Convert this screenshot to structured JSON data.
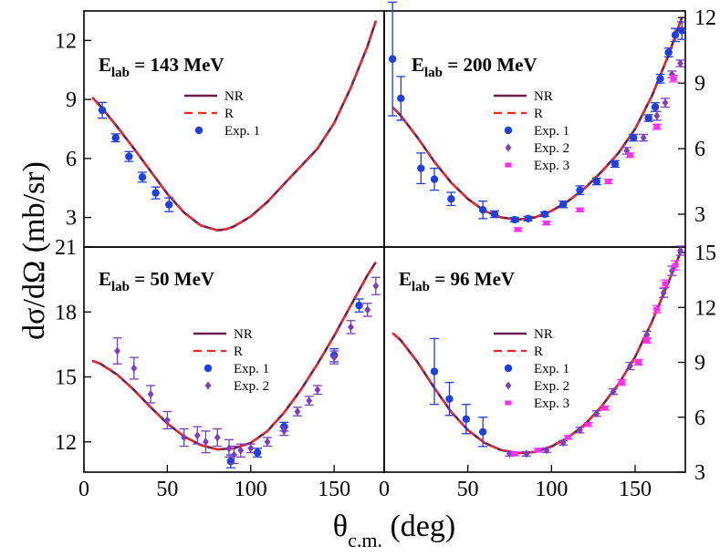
{
  "figure": {
    "ylabel": "dσ/dΩ (mb/sr)",
    "xlabel_theta": "θ",
    "xlabel_sub": "c.m.",
    "xlabel_unit": " (deg)"
  },
  "colors": {
    "NR": "#6b1f4a",
    "R": "#ff2020",
    "Exp. 1": "#1f3fe0",
    "Exp. 2": "#7b3fc0",
    "Exp. 3": "#ff30f0"
  },
  "chart_data": [
    {
      "id": "p143",
      "type": "line+errorbar",
      "title_E": "E",
      "title_sub": "lab",
      "title_rest": " = 143 MeV",
      "xlim": [
        0,
        180
      ],
      "ylim": [
        1.5,
        13.5
      ],
      "yticks": [
        3,
        6,
        9,
        12
      ],
      "ytick_labels": [
        "3",
        "6",
        "9",
        "12"
      ],
      "xticks": [],
      "xtick_labels": [],
      "yaxis_side": "left",
      "legend": [
        "NR",
        "R",
        "Exp. 1"
      ],
      "curve": [
        [
          5,
          9.1
        ],
        [
          10,
          8.65
        ],
        [
          20,
          7.6
        ],
        [
          30,
          6.5
        ],
        [
          40,
          5.35
        ],
        [
          50,
          4.2
        ],
        [
          60,
          3.25
        ],
        [
          70,
          2.6
        ],
        [
          80,
          2.35
        ],
        [
          85,
          2.4
        ],
        [
          90,
          2.55
        ],
        [
          100,
          3.05
        ],
        [
          110,
          3.8
        ],
        [
          120,
          4.7
        ],
        [
          130,
          5.6
        ],
        [
          140,
          6.5
        ],
        [
          150,
          7.8
        ],
        [
          160,
          9.6
        ],
        [
          170,
          11.7
        ],
        [
          175,
          13.0
        ]
      ],
      "series": [
        {
          "name": "Exp. 1",
          "marker": "circle",
          "points": [
            [
              11,
              8.45,
              0.4
            ],
            [
              19,
              7.05,
              0.2
            ],
            [
              27,
              6.1,
              0.25
            ],
            [
              35,
              5.05,
              0.25
            ],
            [
              43,
              4.25,
              0.3
            ],
            [
              51,
              3.65,
              0.35
            ]
          ]
        }
      ]
    },
    {
      "id": "p200",
      "type": "line+errorbar",
      "title_E": "E",
      "title_sub": "lab",
      "title_rest": " = 200 MeV",
      "xlim": [
        0,
        180
      ],
      "ylim": [
        1.5,
        12.3
      ],
      "yticks": [
        3,
        6,
        9,
        12
      ],
      "ytick_labels": [
        "3",
        "6",
        "9",
        "12"
      ],
      "xticks": [],
      "xtick_labels": [],
      "yaxis_side": "right",
      "legend": [
        "NR",
        "R",
        "Exp. 1",
        "Exp. 2",
        "Exp. 3"
      ],
      "curve": [
        [
          5,
          7.9
        ],
        [
          10,
          7.5
        ],
        [
          20,
          6.5
        ],
        [
          30,
          5.4
        ],
        [
          40,
          4.45
        ],
        [
          50,
          3.7
        ],
        [
          60,
          3.15
        ],
        [
          70,
          2.85
        ],
        [
          80,
          2.75
        ],
        [
          90,
          2.85
        ],
        [
          100,
          3.15
        ],
        [
          110,
          3.6
        ],
        [
          120,
          4.2
        ],
        [
          130,
          4.95
        ],
        [
          140,
          5.8
        ],
        [
          150,
          6.9
        ],
        [
          160,
          8.4
        ],
        [
          170,
          10.3
        ],
        [
          178,
          12.0
        ]
      ],
      "series": [
        {
          "name": "Exp. 1",
          "marker": "circle",
          "points": [
            [
              5,
              10.1,
              2.6
            ],
            [
              10,
              8.3,
              1.0
            ],
            [
              22,
              5.1,
              0.7
            ],
            [
              30,
              4.6,
              0.5
            ],
            [
              40,
              3.7,
              0.3
            ],
            [
              59,
              3.2,
              0.4
            ],
            [
              66,
              3.0,
              0.15
            ],
            [
              78,
              2.75,
              0.1
            ],
            [
              86,
              2.8,
              0.1
            ],
            [
              96,
              3.0,
              0.1
            ],
            [
              107,
              3.45,
              0.15
            ],
            [
              117,
              4.1,
              0.2
            ],
            [
              127,
              4.5,
              0.15
            ],
            [
              138,
              5.3,
              0.15
            ],
            [
              149,
              6.5,
              0.15
            ],
            [
              158,
              7.4,
              0.15
            ],
            [
              162,
              7.9,
              0.2
            ],
            [
              165,
              9.2,
              0.2
            ],
            [
              170,
              10.4,
              0.2
            ],
            [
              174,
              11.2,
              0.3
            ],
            [
              178,
              11.4,
              0.4
            ]
          ]
        },
        {
          "name": "Exp. 2",
          "marker": "diamond",
          "points": [
            [
              145,
              5.9,
              0.15
            ],
            [
              155,
              6.5,
              0.15
            ],
            [
              163,
              7.5,
              0.2
            ],
            [
              168,
              8.1,
              0.2
            ],
            [
              172,
              9.4,
              0.15
            ],
            [
              177,
              9.9,
              0.15
            ]
          ]
        },
        {
          "name": "Exp. 3",
          "marker": "square",
          "points": [
            [
              80,
              2.3,
              0.08
            ],
            [
              97,
              2.6,
              0.08
            ],
            [
              117,
              3.2,
              0.08
            ],
            [
              134,
              4.5,
              0.1
            ],
            [
              147,
              5.7,
              0.1
            ],
            [
              163,
              7.0,
              0.12
            ],
            [
              173,
              9.2,
              0.15
            ]
          ]
        }
      ]
    },
    {
      "id": "p50",
      "type": "line+errorbar",
      "title_E": "E",
      "title_sub": "lab",
      "title_rest": " = 50 MeV",
      "xlim": [
        0,
        180
      ],
      "ylim": [
        10.6,
        21.0
      ],
      "yticks": [
        12,
        15,
        18,
        21
      ],
      "ytick_labels": [
        "12",
        "15",
        "18",
        "21"
      ],
      "xticks": [
        0,
        50,
        100,
        150
      ],
      "xtick_labels": [
        "0",
        "50",
        "100",
        "150"
      ],
      "yaxis_side": "left",
      "legend": [
        "NR",
        "R",
        "Exp. 1",
        "Exp. 2"
      ],
      "curve": [
        [
          5,
          15.75
        ],
        [
          10,
          15.6
        ],
        [
          20,
          15.1
        ],
        [
          30,
          14.4
        ],
        [
          40,
          13.6
        ],
        [
          50,
          12.85
        ],
        [
          60,
          12.25
        ],
        [
          70,
          11.85
        ],
        [
          80,
          11.65
        ],
        [
          90,
          11.7
        ],
        [
          100,
          11.95
        ],
        [
          110,
          12.5
        ],
        [
          120,
          13.35
        ],
        [
          130,
          14.4
        ],
        [
          140,
          15.6
        ],
        [
          150,
          16.9
        ],
        [
          160,
          18.3
        ],
        [
          170,
          19.7
        ],
        [
          175,
          20.3
        ]
      ],
      "series": [
        {
          "name": "Exp. 1",
          "marker": "circle",
          "points": [
            [
              88,
              11.1,
              0.3
            ],
            [
              104,
              11.5,
              0.2
            ],
            [
              120,
              12.7,
              0.2
            ],
            [
              150,
              16.0,
              0.3
            ],
            [
              165,
              18.3,
              0.3
            ]
          ]
        },
        {
          "name": "Exp. 2",
          "marker": "diamond",
          "points": [
            [
              20,
              16.2,
              0.6
            ],
            [
              30,
              15.4,
              0.5
            ],
            [
              40,
              14.2,
              0.4
            ],
            [
              50,
              13.0,
              0.4
            ],
            [
              60,
              12.2,
              0.4
            ],
            [
              68,
              12.3,
              0.4
            ],
            [
              73,
              12.0,
              0.5
            ],
            [
              80,
              12.2,
              0.4
            ],
            [
              87,
              11.7,
              0.4
            ],
            [
              90,
              11.4,
              0.4
            ],
            [
              94,
              11.6,
              0.3
            ],
            [
              100,
              11.7,
              0.2
            ],
            [
              110,
              12.0,
              0.2
            ],
            [
              120,
              12.5,
              0.2
            ],
            [
              128,
              13.4,
              0.2
            ],
            [
              135,
              13.9,
              0.2
            ],
            [
              140,
              14.4,
              0.2
            ],
            [
              150,
              15.9,
              0.3
            ],
            [
              160,
              17.3,
              0.3
            ],
            [
              170,
              18.1,
              0.3
            ],
            [
              175,
              19.2,
              0.4
            ]
          ]
        }
      ]
    },
    {
      "id": "p96",
      "type": "line+errorbar",
      "title_E": "E",
      "title_sub": "lab",
      "title_rest": " = 96 MeV",
      "xlim": [
        0,
        180
      ],
      "ylim": [
        3,
        15.3
      ],
      "yticks": [
        3,
        6,
        9,
        12,
        15
      ],
      "ytick_labels": [
        "3",
        "6",
        "9",
        "12",
        "15"
      ],
      "xticks": [
        0,
        50,
        100,
        150
      ],
      "xtick_labels": [
        "0",
        "50",
        "100",
        "150"
      ],
      "yaxis_side": "right",
      "legend": [
        "NR",
        "R",
        "Exp. 1",
        "Exp. 2",
        "Exp. 3"
      ],
      "curve": [
        [
          5,
          10.6
        ],
        [
          10,
          10.2
        ],
        [
          20,
          9.0
        ],
        [
          30,
          7.6
        ],
        [
          40,
          6.3
        ],
        [
          50,
          5.3
        ],
        [
          60,
          4.6
        ],
        [
          70,
          4.2
        ],
        [
          80,
          4.05
        ],
        [
          90,
          4.1
        ],
        [
          100,
          4.4
        ],
        [
          110,
          4.9
        ],
        [
          120,
          5.6
        ],
        [
          130,
          6.6
        ],
        [
          140,
          7.8
        ],
        [
          150,
          9.3
        ],
        [
          160,
          11.2
        ],
        [
          170,
          13.4
        ],
        [
          178,
          15.2
        ]
      ],
      "series": [
        {
          "name": "Exp. 1",
          "marker": "circle",
          "points": [
            [
              30,
              8.5,
              1.8
            ],
            [
              39,
              7.0,
              0.9
            ],
            [
              49,
              5.9,
              0.8
            ],
            [
              59,
              5.2,
              0.8
            ]
          ]
        },
        {
          "name": "Exp. 2",
          "marker": "diamond",
          "points": [
            [
              75,
              4.0,
              0.12
            ],
            [
              85,
              4.0,
              0.12
            ],
            [
              97,
              4.2,
              0.12
            ],
            [
              107,
              4.6,
              0.12
            ],
            [
              117,
              5.3,
              0.15
            ],
            [
              127,
              6.2,
              0.15
            ],
            [
              137,
              7.4,
              0.15
            ],
            [
              147,
              8.8,
              0.2
            ],
            [
              157,
              10.5,
              0.2
            ],
            [
              167,
              12.8,
              0.25
            ],
            [
              172,
              14.0,
              0.25
            ],
            [
              177,
              15.1,
              0.25
            ]
          ]
        },
        {
          "name": "Exp. 3",
          "marker": "square",
          "points": [
            [
              78,
              4.0,
              0.1
            ],
            [
              92,
              4.2,
              0.1
            ],
            [
              110,
              4.9,
              0.1
            ],
            [
              122,
              5.6,
              0.1
            ],
            [
              132,
              6.5,
              0.1
            ],
            [
              142,
              7.9,
              0.15
            ],
            [
              152,
              9.0,
              0.15
            ],
            [
              157,
              10.2,
              0.15
            ],
            [
              163,
              11.9,
              0.2
            ],
            [
              168,
              13.3,
              0.2
            ],
            [
              174,
              14.3,
              0.25
            ]
          ]
        }
      ]
    }
  ]
}
